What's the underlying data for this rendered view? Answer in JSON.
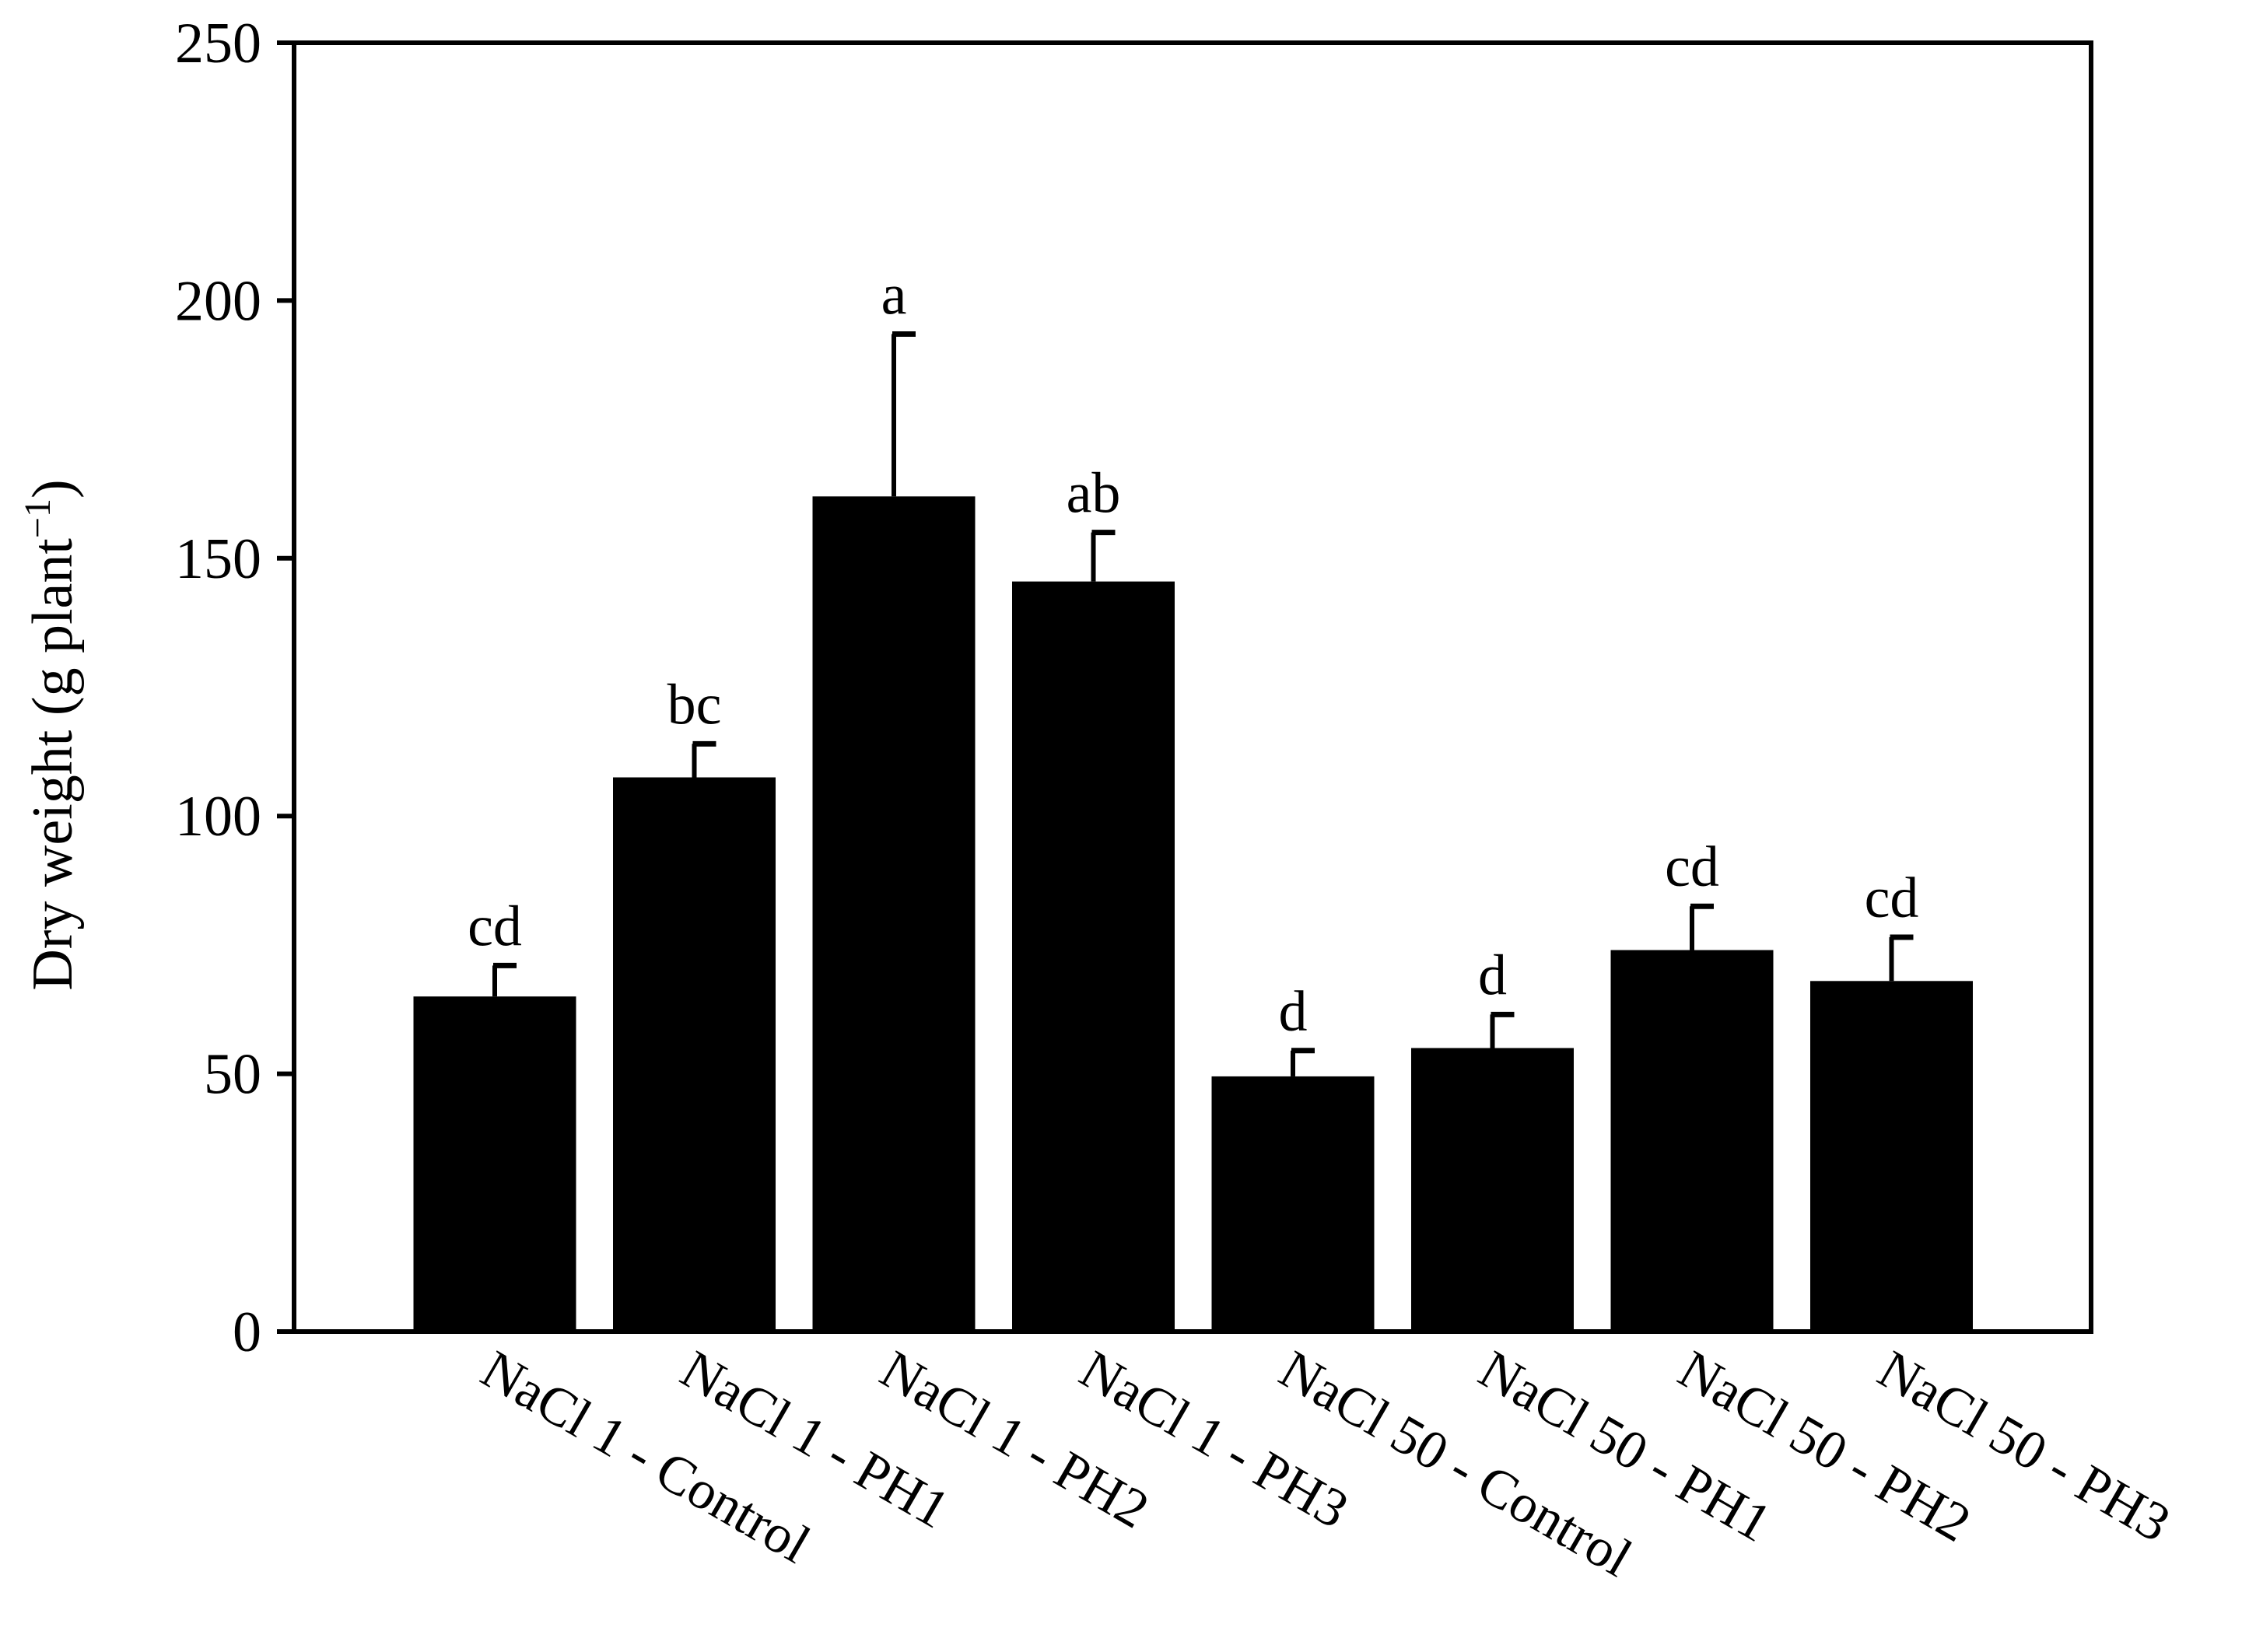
{
  "chart_data": {
    "type": "bar",
    "title": "",
    "xlabel": "",
    "ylabel": "Dry weight (g plant",
    "ylabel_superscript": "−1",
    "ylabel_close": ")",
    "ylim": [
      0,
      250
    ],
    "yticks": [
      0,
      50,
      100,
      150,
      200,
      250
    ],
    "grid": false,
    "legend": "none",
    "bar_color": "#000000",
    "categories": [
      "NaCl 1 - Control",
      "NaCl 1 - PH1",
      "NaCl 1 - PH2",
      "NaCl 1 -  PH3",
      "NaCl 50 - Control",
      "NaCl 50 - PH1",
      "NaCl 50 - PH2",
      "NaCl 50 - PH3"
    ],
    "values": [
      65,
      107.5,
      162,
      145.5,
      49.5,
      55,
      74,
      68
    ],
    "errors": [
      6,
      6.5,
      31.5,
      9.5,
      5,
      6.5,
      8.5,
      8.5
    ],
    "significance": [
      "cd",
      "bc",
      "a",
      "ab",
      "d",
      "d",
      "cd",
      "cd"
    ]
  }
}
